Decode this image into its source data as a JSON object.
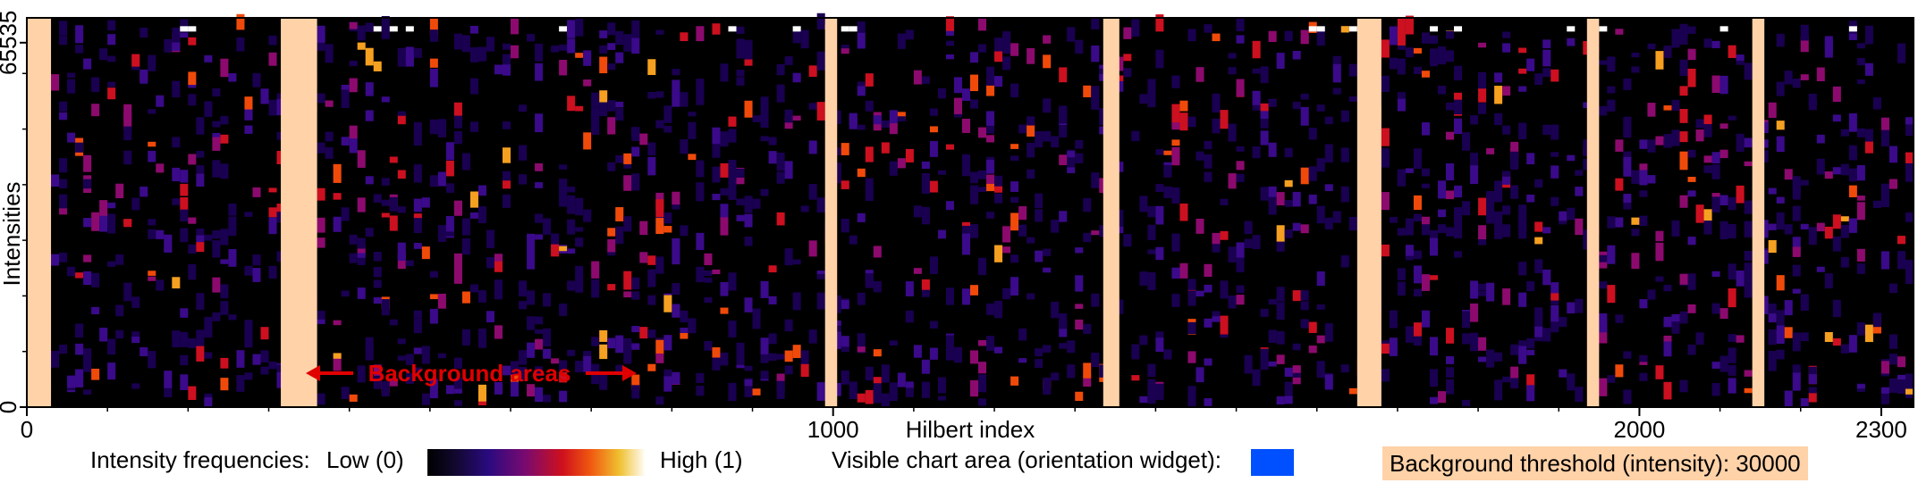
{
  "chart_data": {
    "type": "heatmap",
    "xlabel": "Hilbert index",
    "ylabel": "Intensities",
    "x_ticks": [
      "0",
      "1000",
      "2000",
      "2300"
    ],
    "y_ticks": [
      "0",
      "65535"
    ],
    "x_tick_values": [
      0,
      1000,
      2000,
      2300
    ],
    "y_tick_values": [
      0,
      65535
    ],
    "xlim": [
      0,
      2340
    ],
    "ylim": [
      0,
      70000
    ],
    "annotation": "Background areas",
    "background_regions": [
      [
        0,
        30
      ],
      [
        315,
        360
      ],
      [
        990,
        1005
      ],
      [
        1335,
        1355
      ],
      [
        1650,
        1680
      ],
      [
        1935,
        1950
      ],
      [
        2140,
        2155
      ]
    ],
    "dense_bands": [
      [
        1,
        0.1,
        1
      ],
      [
        1,
        0.96,
        2
      ],
      [
        1,
        0.03,
        0
      ]
    ],
    "colors": {
      "background": "#000000",
      "background_region": "#ffd2a8",
      "annotation": "#e00000",
      "visible_area": "#0050ff",
      "colormap": [
        "#000000",
        "#1a0050",
        "#3a0a8a",
        "#8c0a6e",
        "#cc1020",
        "#f04a0a",
        "#f5a020",
        "#ffffff"
      ]
    },
    "grid": false
  },
  "legend": {
    "intensity_label": "Intensity frequencies:",
    "low_label": "Low (0)",
    "high_label": "High (1)",
    "visible_label": "Visible chart area (orientation widget):",
    "background_label": "Background threshold (intensity): 30000"
  }
}
